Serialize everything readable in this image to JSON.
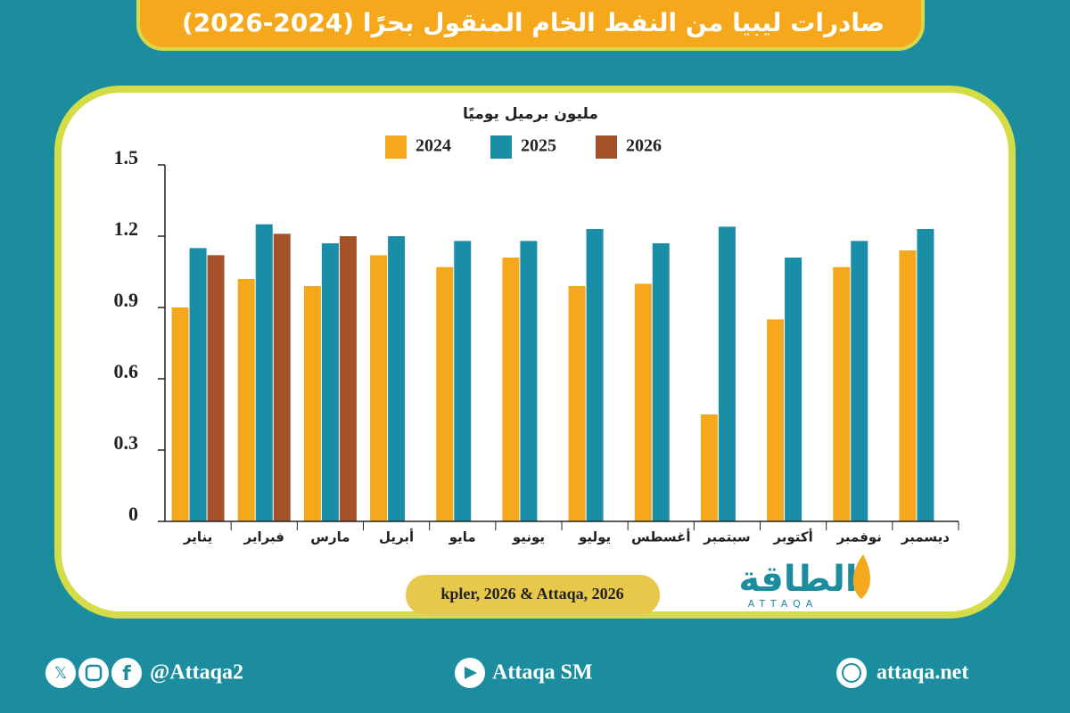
{
  "chart_data": {
    "type": "bar",
    "title": "صادرات ليبيا من النفط الخام المنقول بحرًا (2024-2026)",
    "y_label": "مليون برميل يوميًا",
    "categories": [
      "يناير",
      "فبراير",
      "مارس",
      "أبريل",
      "مايو",
      "يونيو",
      "يوليو",
      "أغسطس",
      "سبتمبر",
      "أكتوبر",
      "نوفمبر",
      "ديسمبر"
    ],
    "series": [
      {
        "name": "2024",
        "color": "#f6a81c",
        "values": [
          0.9,
          1.02,
          0.99,
          1.12,
          1.07,
          1.11,
          0.99,
          1.0,
          0.45,
          0.85,
          1.07,
          1.14
        ]
      },
      {
        "name": "2025",
        "color": "#1a8ea6",
        "values": [
          1.15,
          1.25,
          1.17,
          1.2,
          1.18,
          1.18,
          1.23,
          1.17,
          1.24,
          1.11,
          1.18,
          1.23
        ]
      },
      {
        "name": "2026",
        "color": "#a3522a",
        "values": [
          1.12,
          1.21,
          1.2,
          null,
          null,
          null,
          null,
          null,
          null,
          null,
          null,
          null
        ]
      }
    ],
    "ylim": [
      0,
      1.5
    ],
    "yticks": [
      0,
      0.3,
      0.6,
      0.9,
      1.2,
      1.5
    ],
    "grid": false,
    "legend": "top",
    "source": "kpler, 2026 & Attaqa, 2026"
  },
  "logo": {
    "name": "الطاقة",
    "latin": "ATTAQA"
  },
  "footer": {
    "social": "@Attaqa2",
    "youtube": "Attaqa SM",
    "website": "attaqa.net"
  }
}
